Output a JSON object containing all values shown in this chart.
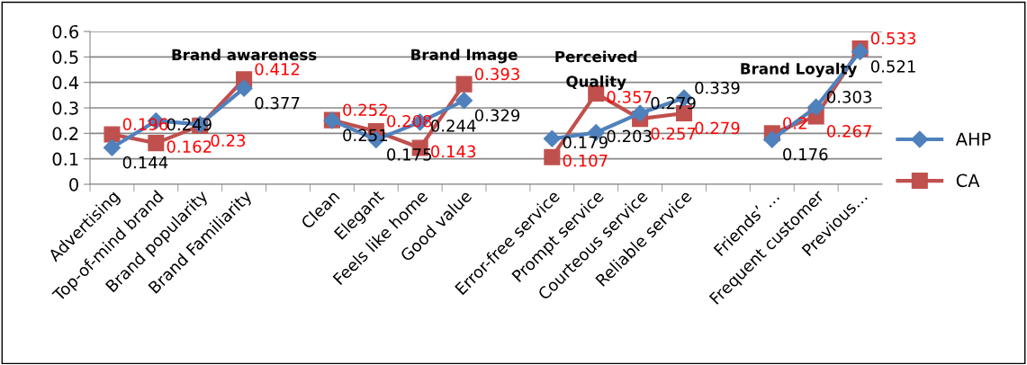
{
  "chart_data": {
    "type": "line",
    "categories": [
      "Advertising",
      "Top-of-mind brand",
      "Brand popularity",
      "Brand Familiarity",
      null,
      "Clean",
      "Elegant",
      "Feels like home",
      "Good value",
      null,
      "Error-free service",
      "Prompt service",
      "Courteous service",
      "Reliable service",
      null,
      "Friends’ …",
      "Frequent customer",
      "Previous…"
    ],
    "series": [
      {
        "name": "AHP",
        "color": "#4f81bd",
        "marker": "diamond",
        "values": [
          0.144,
          0.249,
          0.235,
          0.377,
          null,
          0.251,
          0.175,
          0.244,
          0.329,
          null,
          0.179,
          0.203,
          0.279,
          0.339,
          null,
          0.176,
          0.303,
          0.521
        ],
        "value_labels": [
          "0.144",
          "0.249",
          null,
          "0.377",
          null,
          "0.251",
          "0.175",
          "0.244",
          "0.329",
          null,
          "0.179",
          "0.203",
          "0.279",
          "0.339",
          null,
          "0.176",
          "0.303",
          "0.521"
        ]
      },
      {
        "name": "CA",
        "color": "#c0504d",
        "marker": "square",
        "values": [
          0.196,
          0.162,
          0.23,
          0.412,
          null,
          0.252,
          0.208,
          0.143,
          0.393,
          null,
          0.107,
          0.357,
          0.257,
          0.279,
          null,
          0.2,
          0.267,
          0.533
        ],
        "value_labels": [
          "0.196",
          "0.162",
          "0.23",
          "0.412",
          null,
          "0.252",
          "0.208",
          "0.143",
          "0.393",
          null,
          "0.107",
          "0.357",
          "0.257",
          "0.279",
          null,
          "0.2",
          "0.267",
          "0.533"
        ]
      }
    ],
    "annotations": [
      "Brand awareness",
      "Brand Image",
      "Perceived\nQuality",
      "Brand Loyalty"
    ],
    "ylim": [
      0,
      0.6
    ],
    "yticks": [
      0,
      0.1,
      0.2,
      0.3,
      0.4,
      0.5,
      0.6
    ],
    "grid": "y",
    "legend": "right"
  }
}
